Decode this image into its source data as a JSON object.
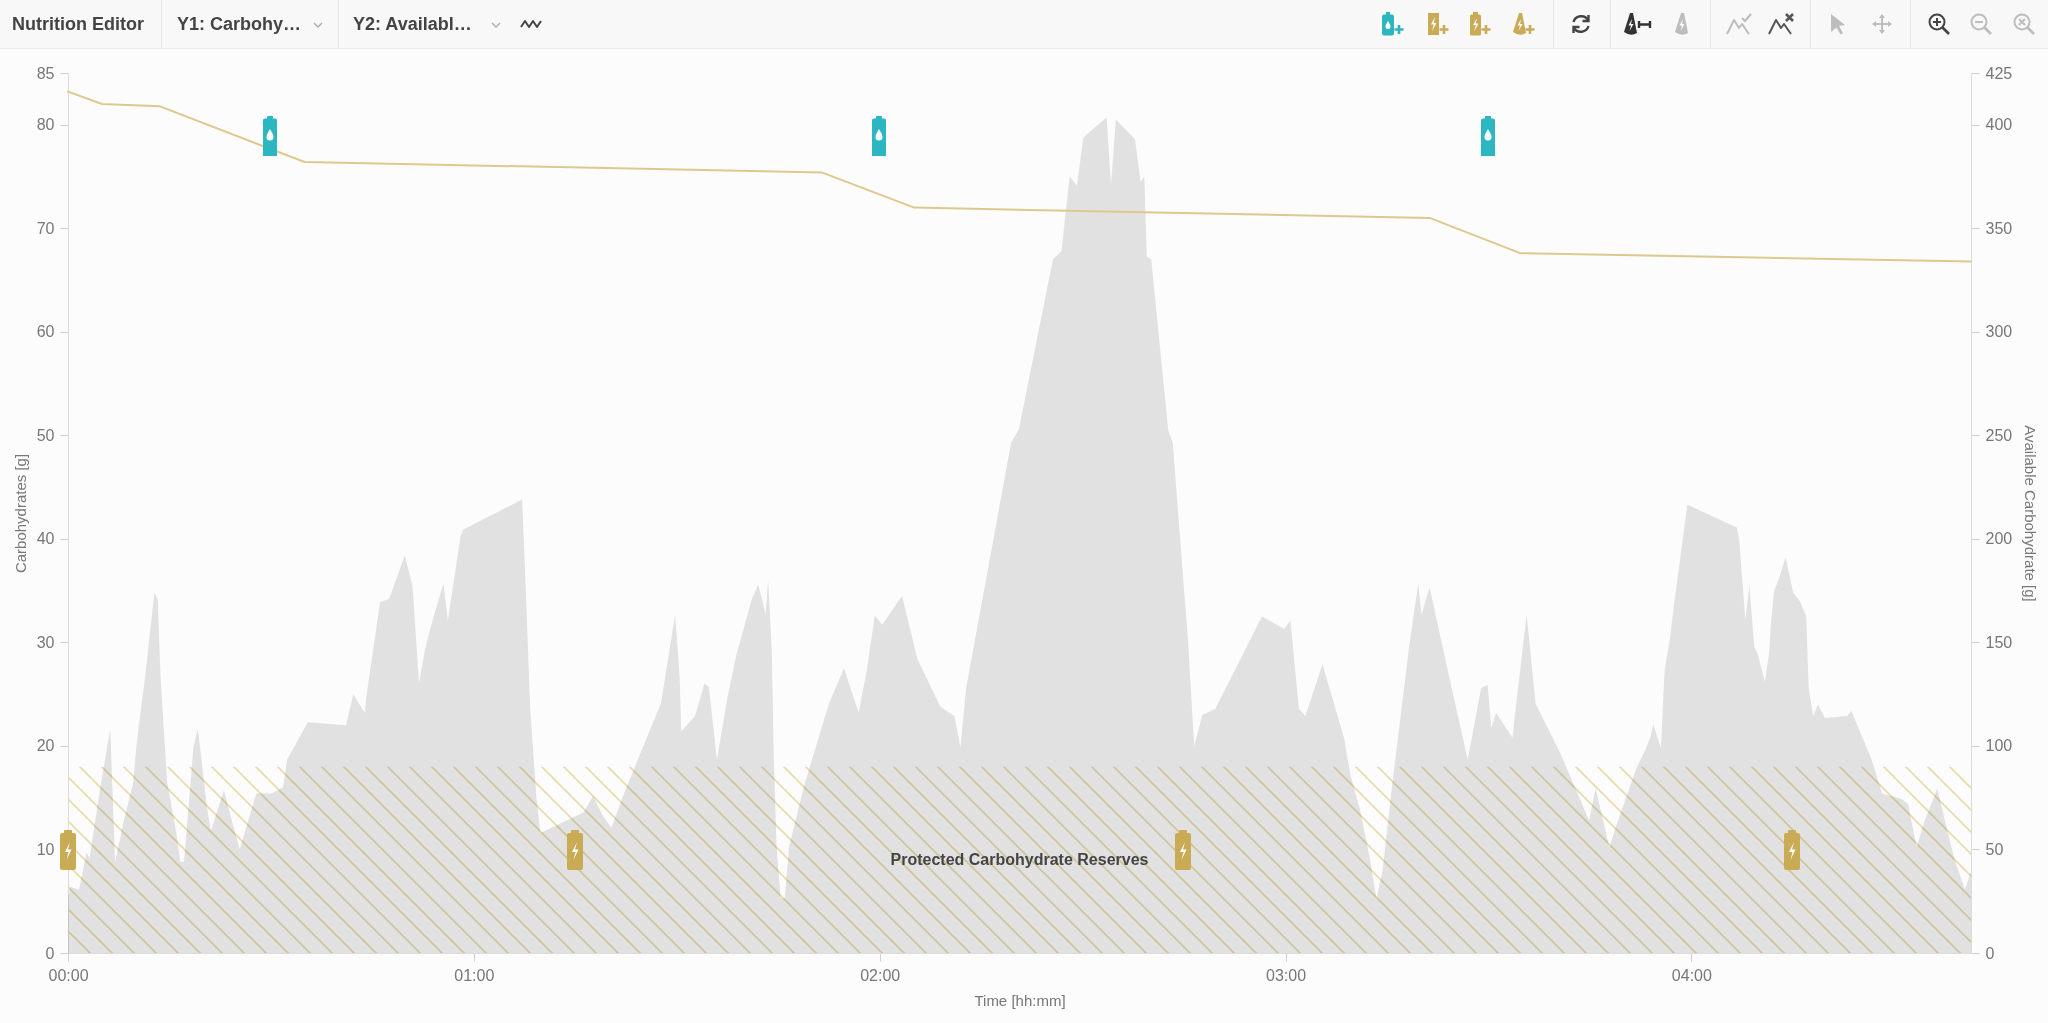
{
  "chart_data": {
    "type": "area",
    "title": "Nutrition Editor",
    "xlabel": "Time [hh:mm]",
    "ylabel": "Carbohydrates [g]",
    "y2label": "Available Carbohydrate [g]",
    "xlim": [
      0,
      4.689
    ],
    "xticks": [
      {
        "value": 0,
        "label": "00:00"
      },
      {
        "value": 1,
        "label": "01:00"
      },
      {
        "value": 2,
        "label": "02:00"
      },
      {
        "value": 3,
        "label": "03:00"
      },
      {
        "value": 4,
        "label": "04:00"
      }
    ],
    "ylim": [
      0,
      85
    ],
    "yticks": [
      0,
      10,
      20,
      30,
      40,
      50,
      60,
      70,
      80,
      85
    ],
    "y2lim": [
      0,
      425
    ],
    "y2ticks": [
      0,
      50,
      100,
      150,
      200,
      250,
      300,
      350,
      400,
      425
    ],
    "series": [
      {
        "color": "#e4e4e4",
        "x": [
          0,
          0.005,
          0.027,
          0.046,
          0.053,
          0.076,
          0.104,
          0.116,
          0.137,
          0.16,
          0.17,
          0.19,
          0.213,
          0.221,
          0.228,
          0.244,
          0.266,
          0.277,
          0.286,
          0.309,
          0.32,
          0.342,
          0.352,
          0.384,
          0.423,
          0.464,
          0.502,
          0.53,
          0.54,
          0.591,
          0.685,
          0.703,
          0.731,
          0.735,
          0.769,
          0.791,
          0.83,
          0.849,
          0.865,
          0.88,
          0.898,
          0.925,
          0.936,
          0.967,
          0.974,
          1.119,
          1.126,
          1.139,
          1.154,
          1.164,
          1.271,
          1.294,
          1.317,
          1.339,
          1.37,
          1.423,
          1.461,
          1.496,
          1.507,
          1.511,
          1.545,
          1.568,
          1.579,
          1.599,
          1.625,
          1.647,
          1.685,
          1.701,
          1.719,
          1.725,
          1.734,
          1.739,
          1.746,
          1.756,
          1.766,
          1.777,
          1.815,
          1.875,
          1.912,
          1.948,
          1.967,
          1.988,
          2.006,
          2.055,
          2.093,
          2.149,
          2.184,
          2.199,
          2.213,
          2.324,
          2.343,
          2.427,
          2.448,
          2.468,
          2.486,
          2.502,
          2.559,
          2.57,
          2.582,
          2.629,
          2.643,
          2.652,
          2.658,
          2.669,
          2.711,
          2.722,
          2.76,
          2.775,
          2.795,
          2.827,
          2.942,
          2.997,
          3.012,
          3.033,
          3.049,
          3.091,
          3.144,
          3.16,
          3.183,
          3.205,
          3.224,
          3.239,
          3.263,
          3.304,
          3.327,
          3.335,
          3.355,
          3.411,
          3.449,
          3.482,
          3.498,
          3.507,
          3.519,
          3.559,
          3.594,
          3.616,
          3.677,
          3.748,
          3.764,
          3.798,
          3.814,
          3.865,
          3.884,
          3.9,
          3.906,
          3.925,
          3.934,
          3.947,
          3.956,
          3.99,
          4.112,
          4.118,
          4.133,
          4.143,
          4.155,
          4.164,
          4.181,
          4.192,
          4.196,
          4.204,
          4.217,
          4.232,
          4.251,
          4.267,
          4.283,
          4.289,
          4.3,
          4.312,
          4.329,
          4.384,
          4.394,
          4.445,
          4.47,
          4.517,
          4.534,
          4.555,
          4.574,
          4.606,
          4.627,
          4.648,
          4.674,
          4.689
        ],
        "values": [
          5.3,
          6.4,
          6.1,
          9.7,
          9.1,
          15.1,
          21.7,
          8.8,
          12.7,
          16.3,
          20.5,
          26.7,
          34.8,
          34.2,
          26.7,
          16.6,
          11.8,
          8.8,
          8.8,
          19.9,
          21.7,
          14.2,
          11.8,
          15.7,
          10.0,
          15.4,
          15.4,
          16.0,
          18.7,
          22.3,
          22.0,
          25.0,
          23.2,
          24.7,
          33.9,
          34.2,
          38.4,
          35.4,
          26.1,
          29.4,
          32.1,
          35.7,
          32.1,
          40.2,
          40.9,
          43.8,
          37.2,
          23.5,
          15.1,
          11.6,
          13.6,
          15.2,
          13.3,
          12.1,
          15.4,
          20.5,
          24.1,
          32.7,
          26.7,
          21.4,
          22.9,
          26.0,
          25.7,
          18.7,
          24.7,
          28.8,
          34.2,
          35.6,
          32.7,
          36.0,
          29.4,
          18.7,
          10.3,
          5.3,
          5.3,
          10.3,
          16.3,
          24.1,
          27.5,
          23.2,
          27.0,
          32.6,
          31.7,
          34.5,
          28.4,
          23.8,
          22.9,
          19.9,
          25.6,
          49.3,
          50.6,
          67.0,
          67.8,
          75.0,
          74.1,
          78.8,
          80.7,
          74.2,
          80.5,
          78.6,
          74.5,
          75.0,
          67.3,
          67.0,
          50.5,
          49.3,
          30.0,
          20.0,
          23.0,
          23.6,
          32.5,
          31.3,
          32.1,
          23.6,
          22.9,
          27.9,
          20.8,
          17.2,
          13.9,
          9.7,
          5.3,
          7.9,
          16.3,
          29.4,
          35.7,
          32.7,
          35.3,
          25.3,
          18.7,
          25.6,
          25.9,
          21.7,
          23.2,
          20.8,
          32.7,
          24.1,
          19.3,
          12.8,
          15.9,
          10.2,
          12.2,
          17.9,
          19.4,
          20.9,
          22.1,
          19.8,
          27.3,
          30.3,
          33.3,
          43.3,
          41.1,
          39.8,
          32.2,
          35.5,
          29.6,
          28.8,
          26.2,
          29.1,
          31.8,
          35.0,
          36.3,
          38.2,
          34.8,
          34.0,
          32.5,
          25.6,
          22.9,
          24.0,
          22.7,
          22.9,
          23.4,
          18.6,
          15.4,
          14.9,
          14.4,
          10.2,
          12.7,
          15.9,
          12.4,
          9.1,
          6.1,
          7.9
        ]
      },
      {
        "type": "line",
        "color": "#dcc98f",
        "axis": "y2",
        "x": [
          0,
          0.084,
          0.225,
          0.583,
          1.857,
          2.085,
          3.355,
          3.578,
          4.689
        ],
        "values": [
          416,
          410,
          409,
          382,
          377,
          360,
          355,
          338,
          334
        ]
      }
    ],
    "bands": [
      {
        "axis": "y",
        "from": 0,
        "to": 18,
        "label": "Protected Carbohydrate Reserves",
        "color": "#e8dbab"
      }
    ],
    "annotations": [
      "Y1: Carbohy…",
      "Y2: Availabl…"
    ]
  }
}
